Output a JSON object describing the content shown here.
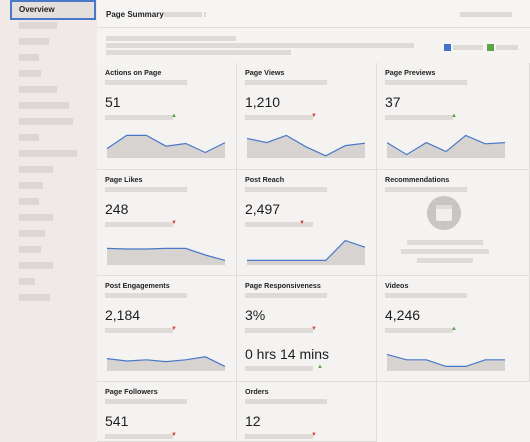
{
  "sidebar": {
    "active_item": "Overview"
  },
  "summary": {
    "title": "Page Summary",
    "legend_colors": [
      "#3f74c8",
      "#5aa548"
    ]
  },
  "colors": {
    "accent": "#4a78c8",
    "spark_line": "#4a78c8",
    "spark_fill": "#d7d3d0",
    "up": "#5a9e48",
    "down": "#d04a3e"
  },
  "cards": [
    {
      "title": "Actions on Page",
      "value": "51",
      "trend": "up",
      "spark": [
        0.28,
        0.72,
        0.72,
        0.36,
        0.45,
        0.15,
        0.48
      ]
    },
    {
      "title": "Page Views",
      "value": "1,210",
      "trend": "down",
      "spark": [
        0.62,
        0.48,
        0.72,
        0.34,
        0.04,
        0.38,
        0.46
      ]
    },
    {
      "title": "Page Previews",
      "value": "37",
      "trend": "up",
      "spark": [
        0.48,
        0.08,
        0.48,
        0.18,
        0.72,
        0.44,
        0.48
      ]
    },
    {
      "title": "Page Likes",
      "value": "248",
      "trend": "down",
      "spark": [
        0.52,
        0.5,
        0.5,
        0.52,
        0.52,
        0.3,
        0.12
      ]
    },
    {
      "title": "Post Reach",
      "value": "2,497",
      "trend": "down",
      "spark": [
        0.12,
        0.12,
        0.12,
        0.12,
        0.12,
        0.78,
        0.56
      ]
    },
    {
      "title": "Recommendations",
      "value": "",
      "trend": "none",
      "spark": []
    },
    {
      "title": "Post Engagements",
      "value": "2,184",
      "trend": "down",
      "spark": [
        0.38,
        0.3,
        0.34,
        0.28,
        0.34,
        0.44,
        0.12
      ]
    },
    {
      "title": "Page Responsiveness",
      "value": "3%",
      "value2": "0 hrs 14 mins",
      "trend": "down",
      "trend2": "up",
      "spark": []
    },
    {
      "title": "Videos",
      "value": "4,246",
      "trend": "up",
      "spark": [
        0.52,
        0.34,
        0.34,
        0.12,
        0.12,
        0.34,
        0.34
      ]
    },
    {
      "title": "Page Followers",
      "value": "541",
      "trend": "down",
      "spark": []
    },
    {
      "title": "Orders",
      "value": "12",
      "trend": "down",
      "spark": []
    }
  ]
}
